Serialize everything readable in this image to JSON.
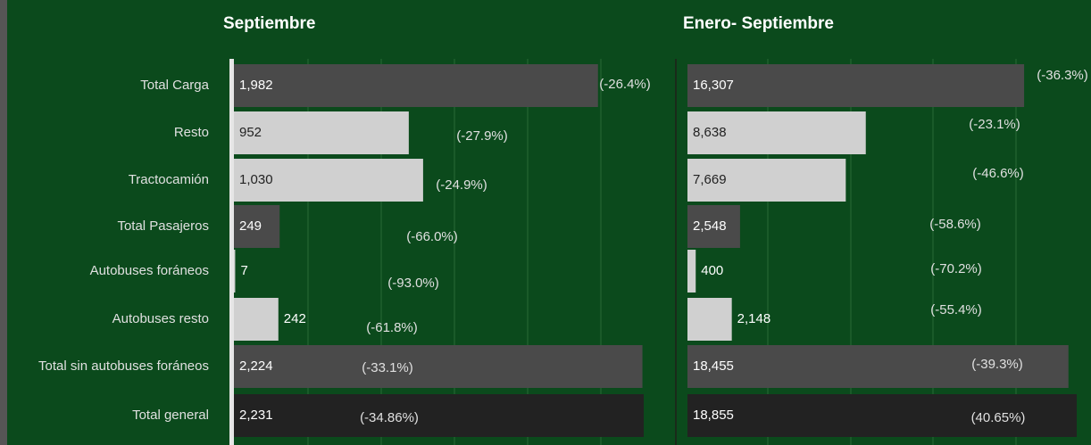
{
  "categories": [
    "Total Carga",
    "Resto",
    "Tractocamión",
    "Total Pasajeros",
    "Autobuses foráneos",
    "Autobuses resto",
    "Total sin autobuses foráneos",
    "Total general"
  ],
  "chart_data": [
    {
      "type": "bar",
      "orientation": "horizontal",
      "title": "Septiembre",
      "values": [
        1982,
        952,
        1030,
        249,
        7,
        242,
        2224,
        2231
      ],
      "value_labels": [
        "1,982",
        "952",
        "1,030",
        "249",
        "7",
        "242",
        "2,224",
        "2,231"
      ],
      "change_labels": [
        "(-26.4%)",
        "(-27.9%)",
        "(-24.9%)",
        "(-66.0%)",
        "(-93.0%)",
        "(-61.8%)",
        "(-33.1%)",
        "(-34.86%)"
      ],
      "colors": [
        "#4a4a4a",
        "#d0d0d0",
        "#d0d0d0",
        "#4a4a4a",
        "#d0d0d0",
        "#d0d0d0",
        "#4a4a4a",
        "#222222"
      ]
    },
    {
      "type": "bar",
      "orientation": "horizontal",
      "title": "Enero- Septiembre",
      "values": [
        16307,
        8638,
        7669,
        2548,
        400,
        2148,
        18455,
        18855
      ],
      "value_labels": [
        "16,307",
        "8,638",
        "7,669",
        "2,548",
        "400",
        "2,148",
        "18,455",
        "18,855"
      ],
      "change_labels": [
        "(-36.3%)",
        "(-23.1%)",
        "(-46.6%)",
        "(-58.6%)",
        "(-70.2%)",
        "(-55.4%)",
        "(-39.3%)",
        "(40.65%)"
      ],
      "colors": [
        "#4a4a4a",
        "#d0d0d0",
        "#d0d0d0",
        "#4a4a4a",
        "#d0d0d0",
        "#d0d0d0",
        "#4a4a4a",
        "#222222"
      ]
    }
  ]
}
